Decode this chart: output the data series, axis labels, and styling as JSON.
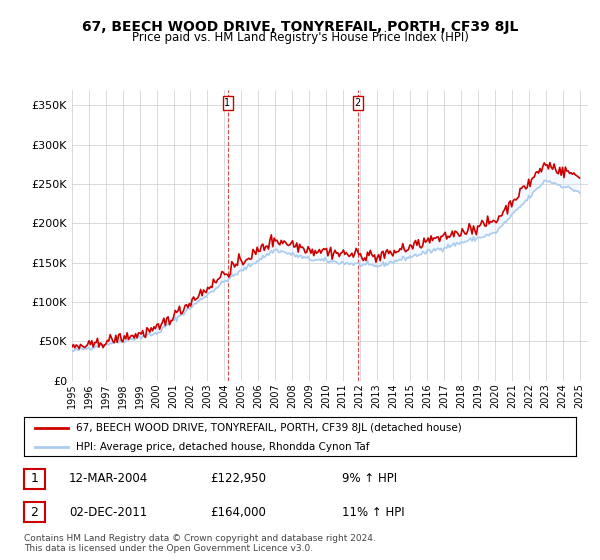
{
  "title": "67, BEECH WOOD DRIVE, TONYREFAIL, PORTH, CF39 8JL",
  "subtitle": "Price paid vs. HM Land Registry's House Price Index (HPI)",
  "legend_line1": "67, BEECH WOOD DRIVE, TONYREFAIL, PORTH, CF39 8JL (detached house)",
  "legend_line2": "HPI: Average price, detached house, Rhondda Cynon Taf",
  "annotation1_label": "1",
  "annotation1_date": "12-MAR-2004",
  "annotation1_price": "£122,950",
  "annotation1_pct": "9% ↑ HPI",
  "annotation2_label": "2",
  "annotation2_date": "02-DEC-2011",
  "annotation2_price": "£164,000",
  "annotation2_pct": "11% ↑ HPI",
  "footer": "Contains HM Land Registry data © Crown copyright and database right 2024.\nThis data is licensed under the Open Government Licence v3.0.",
  "ylim": [
    0,
    370000
  ],
  "yticks": [
    0,
    50000,
    100000,
    150000,
    200000,
    250000,
    300000,
    350000
  ],
  "red_color": "#cc0000",
  "blue_color": "#aaccee",
  "sale1_year": 2004.19,
  "sale1_value": 122950,
  "sale2_year": 2011.92,
  "sale2_value": 164000,
  "background_color": "#ffffff",
  "plot_bg_color": "#ffffff",
  "grid_color": "#cccccc",
  "shade_color": "#ddeeff"
}
